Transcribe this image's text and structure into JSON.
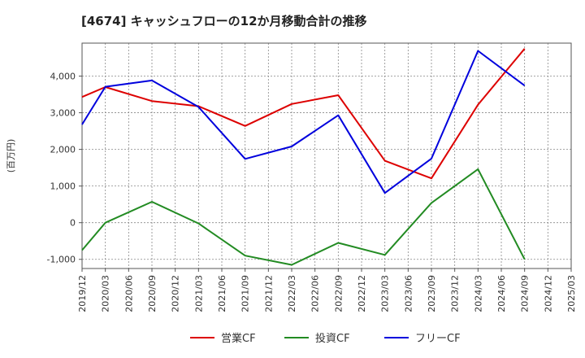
{
  "chart_data": {
    "type": "line",
    "title": "[4674]  キャッシュフローの12か月移動合計の推移",
    "ylabel": "(百万円)",
    "xlabel": "",
    "ylim": [
      -1250,
      4900
    ],
    "yticks": [
      -1000,
      0,
      1000,
      2000,
      3000,
      4000
    ],
    "ytick_labels": [
      "-1,000",
      "0",
      "1,000",
      "2,000",
      "3,000",
      "4,000"
    ],
    "categories": [
      "2019/12",
      "2020/03",
      "2020/06",
      "2020/09",
      "2020/12",
      "2021/03",
      "2021/06",
      "2021/09",
      "2021/12",
      "2022/03",
      "2022/06",
      "2022/09",
      "2022/12",
      "2023/03",
      "2023/06",
      "2023/09",
      "2023/12",
      "2024/03",
      "2024/06",
      "2024/09",
      "2024/12",
      "2025/03"
    ],
    "grid": true,
    "legend_position": "bottom",
    "series": [
      {
        "name": "営業CF",
        "color": "#dd0000",
        "values": [
          3430,
          3700,
          null,
          3320,
          null,
          3180,
          null,
          2640,
          null,
          3240,
          null,
          3480,
          null,
          1690,
          null,
          1210,
          null,
          3220,
          null,
          4750,
          null,
          null
        ]
      },
      {
        "name": "投資CF",
        "color": "#228b22",
        "values": [
          -750,
          0,
          null,
          570,
          null,
          -20,
          null,
          -900,
          null,
          -1150,
          null,
          -550,
          null,
          -880,
          null,
          540,
          null,
          1460,
          null,
          -1000,
          null,
          null
        ]
      },
      {
        "name": "フリーCF",
        "color": "#0000dd",
        "values": [
          2680,
          3710,
          null,
          3880,
          null,
          3160,
          null,
          1740,
          null,
          2080,
          null,
          2930,
          null,
          810,
          null,
          1750,
          null,
          4690,
          null,
          3740,
          null,
          null
        ]
      }
    ]
  }
}
